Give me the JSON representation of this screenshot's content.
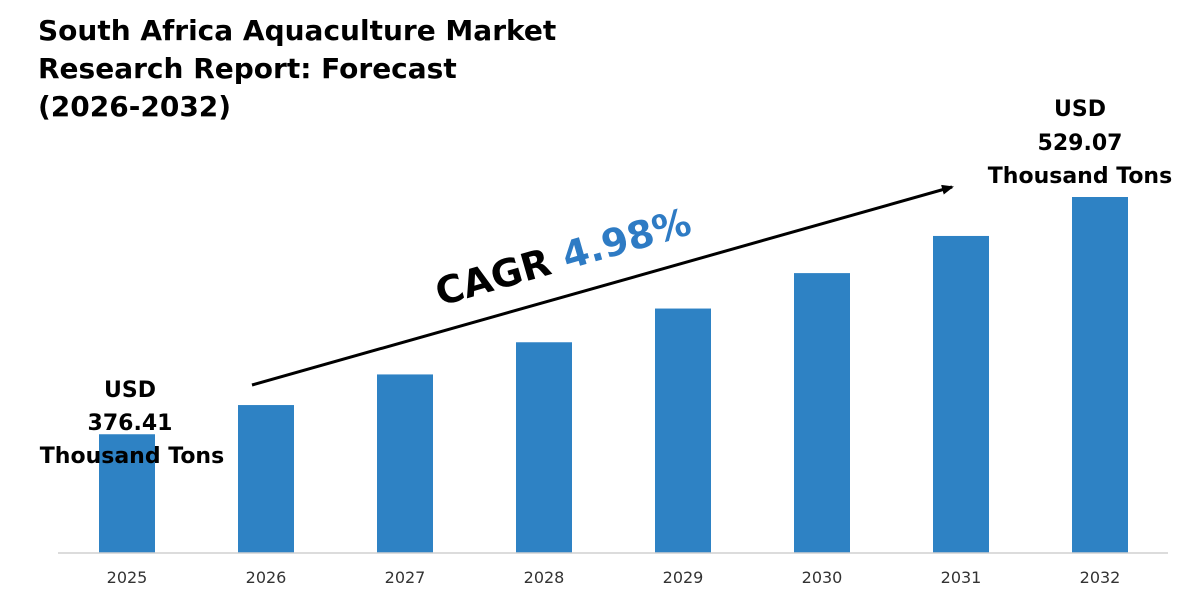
{
  "chart_data": {
    "type": "bar",
    "title_lines": [
      "South Africa Aquaculture Market",
      "Research Report: Forecast",
      "(2026-2032)"
    ],
    "categories": [
      "2025",
      "2026",
      "2027",
      "2028",
      "2029",
      "2030",
      "2031",
      "2032"
    ],
    "values": [
      376.41,
      395.2,
      414.9,
      435.6,
      457.3,
      480.1,
      504.0,
      529.07
    ],
    "ylim": [
      300,
      545
    ],
    "grid": false,
    "bar_color": "#2E82C4",
    "annotations": {
      "start": [
        "USD",
        "376.41",
        "Thousand Tons"
      ],
      "end": [
        "USD",
        "529.07",
        "Thousand Tons"
      ],
      "cagr_label": "CAGR",
      "cagr_value": "4.98%",
      "cagr_value_color": "#2E7BC4"
    }
  }
}
